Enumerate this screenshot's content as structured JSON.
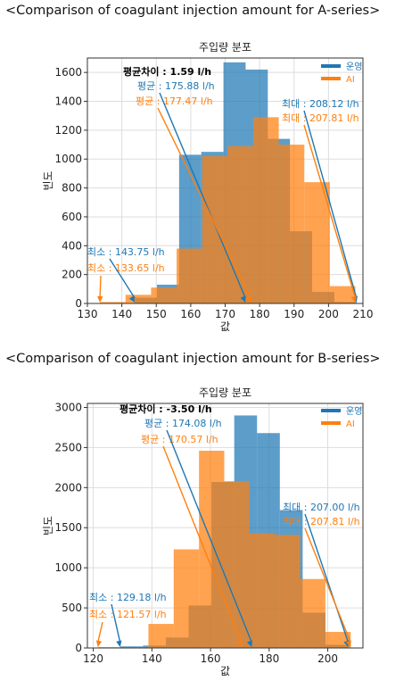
{
  "headings": {
    "a": "<Comparison of coagulant injection amount for A-series>",
    "b": "<Comparison of coagulant injection amount for B-series>"
  },
  "chart_data": [
    {
      "type": "bar",
      "title": "주입량 분포",
      "xlabel": "값",
      "ylabel": "빈도",
      "xlim": [
        130,
        210
      ],
      "ylim": [
        0,
        1700
      ],
      "xticks": [
        130,
        140,
        150,
        160,
        170,
        180,
        190,
        200,
        210
      ],
      "yticks": [
        0,
        200,
        400,
        600,
        800,
        1000,
        1200,
        1400,
        1600
      ],
      "grid": true,
      "legend_position": "top-right",
      "series": [
        {
          "name": "운영",
          "color": "#1f77b4",
          "bins": [
            {
              "x0": 143.75,
              "x1": 150.19,
              "value": 40
            },
            {
              "x0": 150.19,
              "x1": 156.63,
              "value": 130
            },
            {
              "x0": 156.63,
              "x1": 163.06,
              "value": 1030
            },
            {
              "x0": 163.06,
              "x1": 169.5,
              "value": 1050
            },
            {
              "x0": 169.5,
              "x1": 175.94,
              "value": 1670
            },
            {
              "x0": 175.94,
              "x1": 182.38,
              "value": 1620
            },
            {
              "x0": 182.38,
              "x1": 188.81,
              "value": 1140
            },
            {
              "x0": 188.81,
              "x1": 195.25,
              "value": 500
            },
            {
              "x0": 195.25,
              "x1": 201.69,
              "value": 80
            },
            {
              "x0": 201.69,
              "x1": 208.12,
              "value": 10
            }
          ]
        },
        {
          "name": "AI",
          "color": "#ff7f0e",
          "bins": [
            {
              "x0": 133.65,
              "x1": 141.07,
              "value": 10
            },
            {
              "x0": 141.07,
              "x1": 148.48,
              "value": 60
            },
            {
              "x0": 148.48,
              "x1": 155.9,
              "value": 110
            },
            {
              "x0": 155.9,
              "x1": 163.32,
              "value": 380
            },
            {
              "x0": 163.32,
              "x1": 170.73,
              "value": 1020
            },
            {
              "x0": 170.73,
              "x1": 178.15,
              "value": 1090
            },
            {
              "x0": 178.15,
              "x1": 185.56,
              "value": 1290
            },
            {
              "x0": 185.56,
              "x1": 192.98,
              "value": 1100
            },
            {
              "x0": 192.98,
              "x1": 200.39,
              "value": 840
            },
            {
              "x0": 200.39,
              "x1": 207.81,
              "value": 120
            }
          ]
        }
      ],
      "annotations": {
        "mean_diff": "평균차이 : 1.59 l/h",
        "op_mean_label": "평균 : 175.88 l/h",
        "op_mean": 175.88,
        "ai_mean_label": "평균 : 177.47 l/h",
        "ai_mean": 177.47,
        "op_max_label": "최대 : 208.12 l/h",
        "op_max": 208.12,
        "ai_max_label": "최대 : 207.81 l/h",
        "ai_max": 207.81,
        "op_min_label": "최소 : 143.75 l/h",
        "op_min": 143.75,
        "ai_min_label": "최소 : 133.65 l/h",
        "ai_min": 133.65
      }
    },
    {
      "type": "bar",
      "title": "주입량 분포",
      "xlabel": "값",
      "ylabel": "빈도",
      "xlim": [
        118,
        212
      ],
      "ylim": [
        0,
        3050
      ],
      "xticks": [
        120,
        140,
        160,
        180,
        200
      ],
      "yticks": [
        0,
        500,
        1000,
        1500,
        2000,
        2500,
        3000
      ],
      "grid": true,
      "legend_position": "top-right",
      "series": [
        {
          "name": "운영",
          "color": "#1f77b4",
          "bins": [
            {
              "x0": 129.18,
              "x1": 136.96,
              "value": 20
            },
            {
              "x0": 136.96,
              "x1": 144.75,
              "value": 30
            },
            {
              "x0": 144.75,
              "x1": 152.53,
              "value": 130
            },
            {
              "x0": 152.53,
              "x1": 160.31,
              "value": 530
            },
            {
              "x0": 160.31,
              "x1": 168.09,
              "value": 2070
            },
            {
              "x0": 168.09,
              "x1": 175.87,
              "value": 2900
            },
            {
              "x0": 175.87,
              "x1": 183.65,
              "value": 2680
            },
            {
              "x0": 183.65,
              "x1": 191.44,
              "value": 1720
            },
            {
              "x0": 191.44,
              "x1": 199.22,
              "value": 440
            },
            {
              "x0": 199.22,
              "x1": 207.0,
              "value": 40
            }
          ]
        },
        {
          "name": "AI",
          "color": "#ff7f0e",
          "bins": [
            {
              "x0": 121.57,
              "x1": 130.19,
              "value": 10
            },
            {
              "x0": 130.19,
              "x1": 138.82,
              "value": 10
            },
            {
              "x0": 138.82,
              "x1": 147.44,
              "value": 300
            },
            {
              "x0": 147.44,
              "x1": 156.07,
              "value": 1230
            },
            {
              "x0": 156.07,
              "x1": 164.69,
              "value": 2460
            },
            {
              "x0": 164.69,
              "x1": 173.31,
              "value": 2080
            },
            {
              "x0": 173.31,
              "x1": 181.94,
              "value": 1430
            },
            {
              "x0": 181.94,
              "x1": 190.56,
              "value": 1410
            },
            {
              "x0": 190.56,
              "x1": 199.19,
              "value": 860
            },
            {
              "x0": 199.19,
              "x1": 207.81,
              "value": 200
            }
          ]
        }
      ],
      "annotations": {
        "mean_diff": "평균차이 : -3.50 l/h",
        "op_mean_label": "평균 : 174.08 l/h",
        "op_mean": 174.08,
        "ai_mean_label": "평균 : 170.57 l/h",
        "ai_mean": 170.57,
        "op_max_label": "최대 : 207.00 l/h",
        "op_max": 207.0,
        "ai_max_label": "최대 : 207.81 l/h",
        "ai_max": 207.81,
        "op_min_label": "최소 : 129.18 l/h",
        "op_min": 129.18,
        "ai_min_label": "최소 : 121.57 l/h",
        "ai_min": 121.57
      }
    }
  ]
}
